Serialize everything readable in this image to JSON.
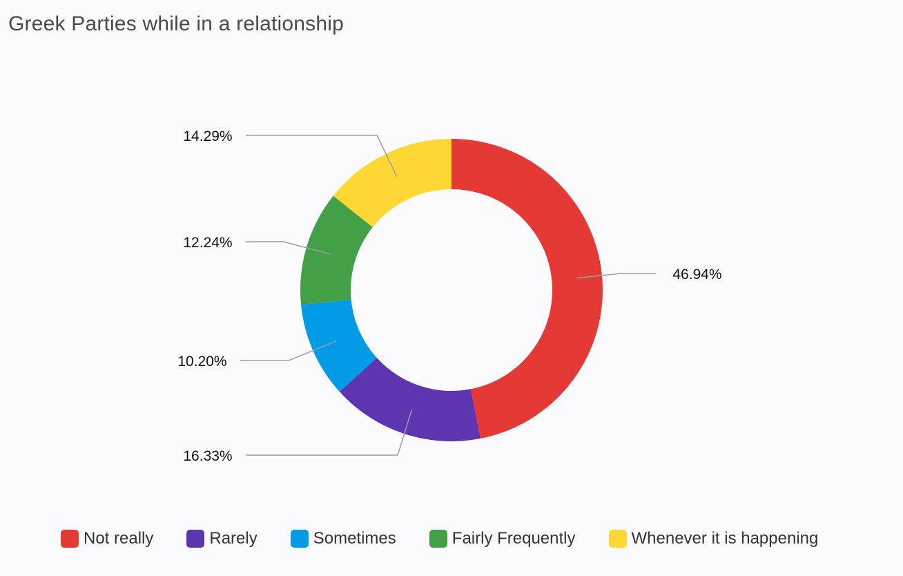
{
  "chart_data": {
    "type": "pie",
    "variant": "donut",
    "title": "Greek Parties while in a relationship",
    "categories": [
      "Not really",
      "Rarely",
      "Sometimes",
      "Fairly Frequently",
      "Whenever it is happening"
    ],
    "values": [
      46.94,
      16.33,
      10.2,
      12.24,
      14.29
    ],
    "labels": [
      "46.94%",
      "16.33%",
      "10.20%",
      "12.24%",
      "14.29%"
    ],
    "colors": [
      "#e53935",
      "#5e35b1",
      "#039be5",
      "#43a047",
      "#fdd835"
    ],
    "legend_position": "bottom"
  }
}
